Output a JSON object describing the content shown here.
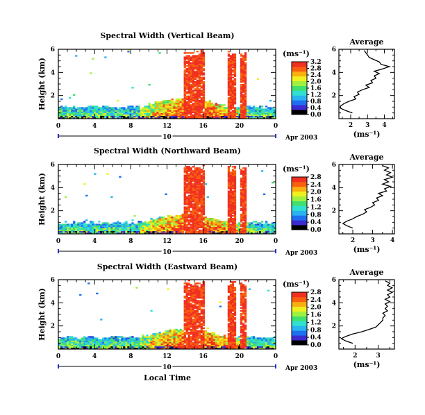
{
  "figure": {
    "xlabel": "Local Time",
    "date_label": "Apr 2003",
    "day_label": "10"
  },
  "chart_data": [
    {
      "type": "heatmap",
      "title": "Spectral Width (Vertical Beam)",
      "ylabel": "Height (km)",
      "y_ticks": [
        "2",
        "4",
        "6"
      ],
      "ylim": [
        0,
        6
      ],
      "x_ticks": [
        "0",
        "4",
        "8",
        "12",
        "16",
        "20",
        "0"
      ],
      "xlim": [
        0,
        24
      ],
      "colorbar": {
        "unit": "(ms⁻¹)",
        "ticks": [
          "0.0",
          "0.4",
          "0.8",
          "1.2",
          "1.6",
          "2.0",
          "2.4",
          "2.8",
          "3.2"
        ],
        "range": [
          0,
          3.2
        ]
      },
      "average": {
        "title": "Average",
        "xlabel": "(ms⁻¹)",
        "x_ticks": [
          "2",
          "3",
          "4"
        ],
        "xlim": [
          1.3,
          4.6
        ],
        "y_ticks": [
          "2",
          "4",
          "6"
        ],
        "profile": [
          [
            2.1,
            0.5
          ],
          [
            1.7,
            0.7
          ],
          [
            1.4,
            0.9
          ],
          [
            1.4,
            1.1
          ],
          [
            1.6,
            1.3
          ],
          [
            1.9,
            1.5
          ],
          [
            2.3,
            1.7
          ],
          [
            2.2,
            1.9
          ],
          [
            2.5,
            2.1
          ],
          [
            2.4,
            2.3
          ],
          [
            2.7,
            2.5
          ],
          [
            3.1,
            2.7
          ],
          [
            2.9,
            2.9
          ],
          [
            3.3,
            3.1
          ],
          [
            3.2,
            3.3
          ],
          [
            3.5,
            3.5
          ],
          [
            3.4,
            3.7
          ],
          [
            3.7,
            3.9
          ],
          [
            3.4,
            4.1
          ],
          [
            3.9,
            4.3
          ],
          [
            4.3,
            4.5
          ],
          [
            3.8,
            4.7
          ],
          [
            3.7,
            4.9
          ],
          [
            3.4,
            5.1
          ],
          [
            3.1,
            5.3
          ],
          [
            3.0,
            5.5
          ],
          [
            2.9,
            5.7
          ],
          [
            2.8,
            5.9
          ]
        ]
      }
    },
    {
      "type": "heatmap",
      "title": "Spectral Width (Northward Beam)",
      "ylabel": "Height (km)",
      "y_ticks": [
        "2",
        "4",
        "6"
      ],
      "ylim": [
        0,
        6
      ],
      "x_ticks": [
        "0",
        "4",
        "8",
        "12",
        "16",
        "20",
        "0"
      ],
      "xlim": [
        0,
        24
      ],
      "colorbar": {
        "unit": "(ms⁻¹)",
        "ticks": [
          "0.0",
          "0.4",
          "0.8",
          "1.2",
          "1.6",
          "2.0",
          "2.4",
          "2.8"
        ],
        "range": [
          0,
          2.8
        ]
      },
      "average": {
        "title": "Average",
        "xlabel": "(ms⁻¹)",
        "x_ticks": [
          "2",
          "3",
          "4"
        ],
        "xlim": [
          1.3,
          4.1
        ],
        "y_ticks": [
          "2",
          "4",
          "6"
        ],
        "profile": [
          [
            2.0,
            0.5
          ],
          [
            1.7,
            0.7
          ],
          [
            1.5,
            0.9
          ],
          [
            1.7,
            1.1
          ],
          [
            2.0,
            1.3
          ],
          [
            2.2,
            1.5
          ],
          [
            2.5,
            1.7
          ],
          [
            2.7,
            1.9
          ],
          [
            2.6,
            2.1
          ],
          [
            2.9,
            2.3
          ],
          [
            3.1,
            2.5
          ],
          [
            3.0,
            2.7
          ],
          [
            3.3,
            2.9
          ],
          [
            3.2,
            3.1
          ],
          [
            3.5,
            3.3
          ],
          [
            3.3,
            3.5
          ],
          [
            3.7,
            3.7
          ],
          [
            3.6,
            3.9
          ],
          [
            3.9,
            4.1
          ],
          [
            3.5,
            4.3
          ],
          [
            3.8,
            4.5
          ],
          [
            3.6,
            4.7
          ],
          [
            4.0,
            4.9
          ],
          [
            3.7,
            5.1
          ],
          [
            3.9,
            5.3
          ],
          [
            3.6,
            5.5
          ],
          [
            3.8,
            5.7
          ],
          [
            3.5,
            5.9
          ]
        ]
      }
    },
    {
      "type": "heatmap",
      "title": "Spectral Width (Eastward Beam)",
      "ylabel": "Height (km)",
      "y_ticks": [
        "2",
        "4",
        "6"
      ],
      "ylim": [
        0,
        6
      ],
      "x_ticks": [
        "0",
        "4",
        "8",
        "12",
        "16",
        "20",
        "0"
      ],
      "xlim": [
        0,
        24
      ],
      "colorbar": {
        "unit": "(ms⁻¹)",
        "ticks": [
          "0.0",
          "0.4",
          "0.8",
          "1.2",
          "1.6",
          "2.0",
          "2.4",
          "2.8"
        ],
        "range": [
          0,
          2.8
        ]
      },
      "average": {
        "title": "Average",
        "xlabel": "(ms⁻¹)",
        "x_ticks": [
          "2",
          "3"
        ],
        "xlim": [
          1.3,
          3.7
        ],
        "y_ticks": [
          "2",
          "4",
          "6"
        ],
        "profile": [
          [
            1.9,
            0.5
          ],
          [
            1.6,
            0.7
          ],
          [
            1.4,
            0.9
          ],
          [
            1.6,
            1.1
          ],
          [
            1.9,
            1.3
          ],
          [
            2.3,
            1.5
          ],
          [
            2.6,
            1.7
          ],
          [
            2.9,
            1.9
          ],
          [
            3.0,
            2.1
          ],
          [
            3.1,
            2.3
          ],
          [
            3.2,
            2.5
          ],
          [
            3.2,
            2.7
          ],
          [
            3.3,
            2.9
          ],
          [
            3.2,
            3.1
          ],
          [
            3.4,
            3.3
          ],
          [
            3.3,
            3.5
          ],
          [
            3.4,
            3.7
          ],
          [
            3.3,
            3.9
          ],
          [
            3.5,
            4.1
          ],
          [
            3.3,
            4.3
          ],
          [
            3.5,
            4.5
          ],
          [
            3.4,
            4.7
          ],
          [
            3.6,
            4.9
          ],
          [
            3.4,
            5.1
          ],
          [
            3.6,
            5.3
          ],
          [
            3.4,
            5.5
          ],
          [
            3.5,
            5.7
          ],
          [
            3.3,
            5.9
          ]
        ]
      }
    }
  ],
  "colors": {
    "scale": [
      "#000000",
      "#3b2bd0",
      "#1f6ff0",
      "#28b4f0",
      "#30e0d0",
      "#40e070",
      "#a0f040",
      "#f0f020",
      "#f8b010",
      "#f86010",
      "#f03020"
    ],
    "axis": "#000000",
    "timebar": "#2233cc"
  }
}
